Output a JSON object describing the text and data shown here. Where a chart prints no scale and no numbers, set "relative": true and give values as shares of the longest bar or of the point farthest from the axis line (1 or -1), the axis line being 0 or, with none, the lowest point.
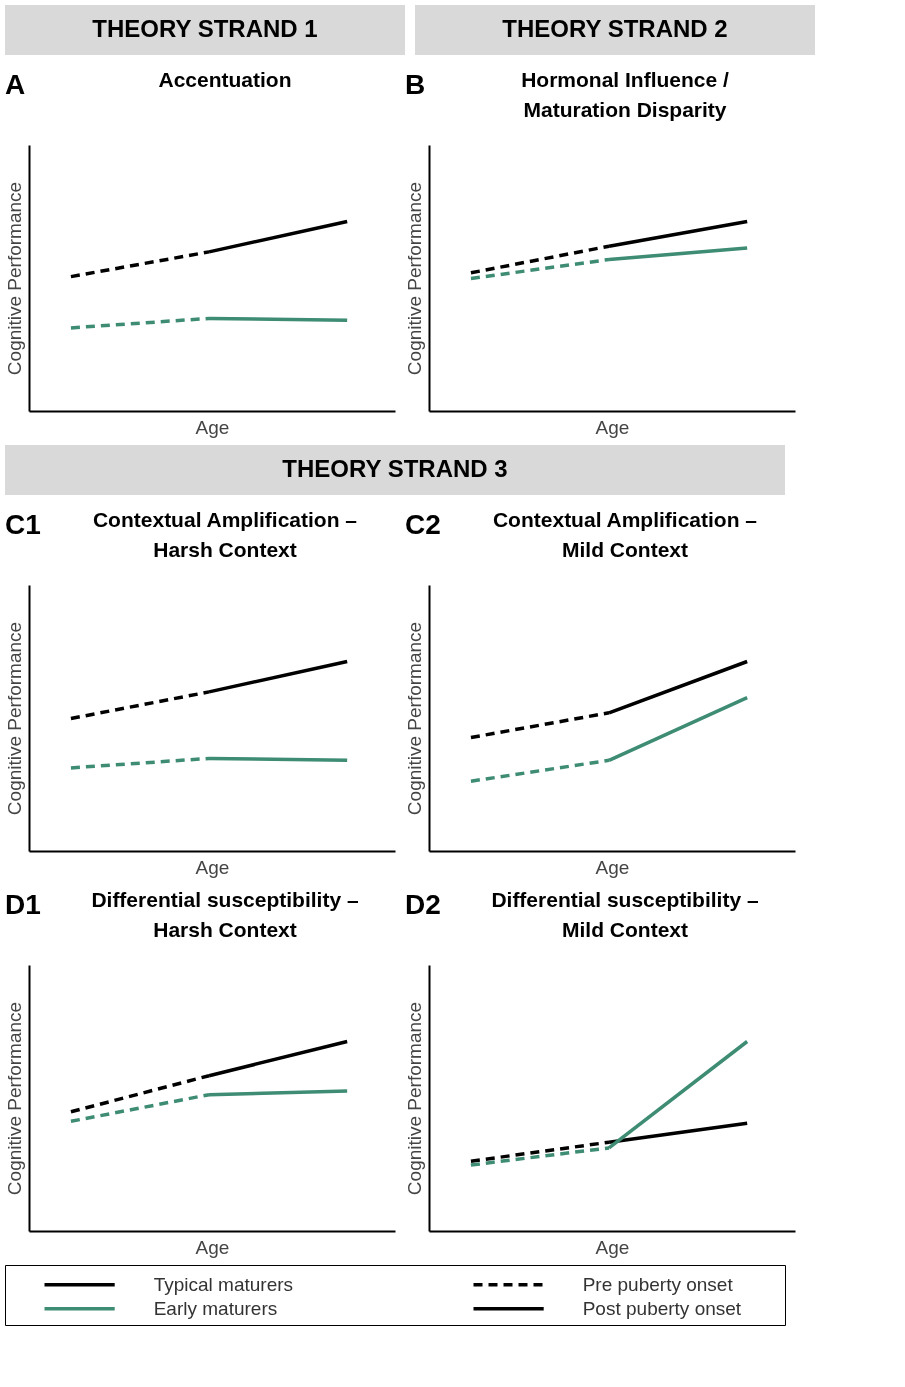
{
  "chart_data": [
    {
      "type": "other",
      "title": "THEORY STRAND 1"
    },
    {
      "type": "other",
      "title": "THEORY STRAND 2"
    },
    {
      "type": "line",
      "title": "Accentuation",
      "annotations": [
        "A"
      ],
      "xlabel": "Age",
      "ylabel": "Cognitive Performance",
      "relative": true,
      "categories": [
        null,
        null,
        null
      ],
      "series": [
        {
          "color": "#000000",
          "line_style": "dashed",
          "values": [
            0.71,
            0.84,
            null
          ]
        },
        {
          "color": "#000000",
          "line_style": "solid",
          "values": [
            null,
            0.84,
            1.0
          ]
        },
        {
          "color": "#3d8c73",
          "line_style": "dashed",
          "values": [
            0.44,
            0.49,
            null
          ]
        },
        {
          "color": "#3d8c73",
          "line_style": "solid",
          "values": [
            null,
            0.49,
            0.48
          ]
        }
      ]
    },
    {
      "type": "line",
      "title": "Hormonal Influence / Maturation Disparity",
      "annotations": [
        "B"
      ],
      "xlabel": "Age",
      "ylabel": "Cognitive Performance",
      "relative": true,
      "categories": [
        null,
        null,
        null
      ],
      "series": [
        {
          "color": "#000000",
          "line_style": "dashed",
          "values": [
            0.73,
            0.87,
            null
          ]
        },
        {
          "color": "#000000",
          "line_style": "solid",
          "values": [
            null,
            0.87,
            1.0
          ]
        },
        {
          "color": "#3d8c73",
          "line_style": "dashed",
          "values": [
            0.7,
            0.8,
            null
          ]
        },
        {
          "color": "#3d8c73",
          "line_style": "solid",
          "values": [
            null,
            0.8,
            0.86
          ]
        }
      ]
    },
    {
      "type": "other",
      "title": "THEORY STRAND 3"
    },
    {
      "type": "line",
      "title": "Contextual Amplification – Harsh Context",
      "annotations": [
        "C1"
      ],
      "xlabel": "Age",
      "ylabel": "Cognitive Performance",
      "relative": true,
      "categories": [
        null,
        null,
        null
      ],
      "series": [
        {
          "color": "#000000",
          "line_style": "dashed",
          "values": [
            0.7,
            0.84,
            null
          ]
        },
        {
          "color": "#000000",
          "line_style": "solid",
          "values": [
            null,
            0.84,
            1.0
          ]
        },
        {
          "color": "#3d8c73",
          "line_style": "dashed",
          "values": [
            0.44,
            0.49,
            null
          ]
        },
        {
          "color": "#3d8c73",
          "line_style": "solid",
          "values": [
            null,
            0.49,
            0.48
          ]
        }
      ]
    },
    {
      "type": "line",
      "title": "Contextual Amplification – Mild Context",
      "annotations": [
        "C2"
      ],
      "xlabel": "Age",
      "ylabel": "Cognitive Performance",
      "relative": true,
      "categories": [
        null,
        null,
        null
      ],
      "series": [
        {
          "color": "#000000",
          "line_style": "dashed",
          "values": [
            0.6,
            0.73,
            null
          ]
        },
        {
          "color": "#000000",
          "line_style": "solid",
          "values": [
            null,
            0.73,
            1.0
          ]
        },
        {
          "color": "#3d8c73",
          "line_style": "dashed",
          "values": [
            0.37,
            0.48,
            null
          ]
        },
        {
          "color": "#3d8c73",
          "line_style": "solid",
          "values": [
            null,
            0.48,
            0.81
          ]
        }
      ]
    },
    {
      "type": "line",
      "title": "Differential susceptibility – Harsh Context",
      "annotations": [
        "D1"
      ],
      "xlabel": "Age",
      "ylabel": "Cognitive Performance",
      "relative": true,
      "categories": [
        null,
        null,
        null
      ],
      "series": [
        {
          "color": "#000000",
          "line_style": "dashed",
          "values": [
            0.63,
            0.82,
            null
          ]
        },
        {
          "color": "#000000",
          "line_style": "solid",
          "values": [
            null,
            0.82,
            1.0
          ]
        },
        {
          "color": "#3d8c73",
          "line_style": "dashed",
          "values": [
            0.58,
            0.72,
            null
          ]
        },
        {
          "color": "#3d8c73",
          "line_style": "solid",
          "values": [
            null,
            0.72,
            0.74
          ]
        }
      ]
    },
    {
      "type": "line",
      "title": "Differential susceptibility – Mild Context",
      "annotations": [
        "D2"
      ],
      "xlabel": "Age",
      "ylabel": "Cognitive Performance",
      "relative": true,
      "categories": [
        null,
        null,
        null
      ],
      "series": [
        {
          "color": "#000000",
          "line_style": "dashed",
          "values": [
            0.37,
            0.47,
            null
          ]
        },
        {
          "color": "#000000",
          "line_style": "solid",
          "values": [
            null,
            0.47,
            0.57
          ]
        },
        {
          "color": "#3d8c73",
          "line_style": "dashed",
          "values": [
            0.35,
            0.44,
            null
          ]
        },
        {
          "color": "#3d8c73",
          "line_style": "solid",
          "values": [
            null,
            0.44,
            1.0
          ]
        }
      ]
    },
    {
      "type": "other",
      "annotations": [
        "Typical maturers",
        "Early maturers",
        "Pre puberty onset",
        "Post puberty onset"
      ],
      "colors": [
        "#000000",
        "#3d8c73",
        "#000000",
        "#000000"
      ]
    }
  ]
}
